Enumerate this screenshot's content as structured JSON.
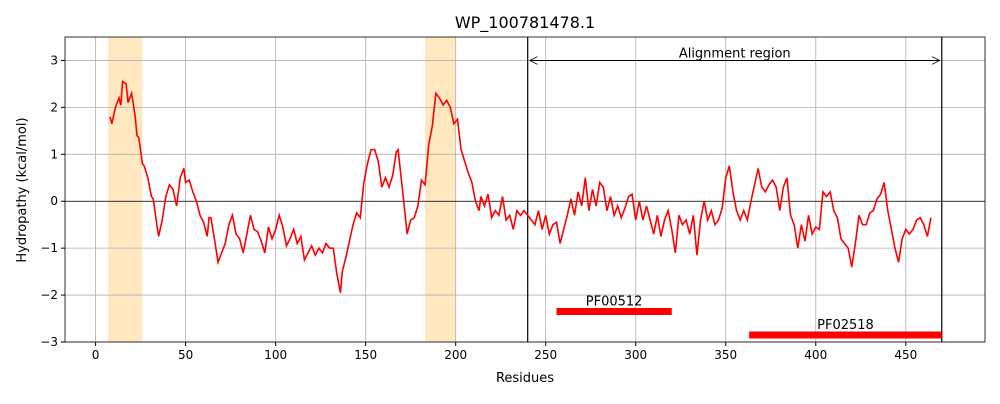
{
  "chart_data": {
    "type": "line",
    "title": "WP_100781478.1",
    "xlabel": "Residues",
    "ylabel": "Hydropathy (kcal/mol)",
    "x": [
      8,
      9,
      11,
      13,
      14,
      15,
      17,
      18,
      20,
      22,
      23,
      24,
      26,
      27,
      29,
      31,
      32,
      34,
      35,
      37,
      39,
      41,
      43,
      45,
      47,
      49,
      50,
      52,
      54,
      56,
      58,
      60,
      62,
      63,
      64,
      66,
      68,
      70,
      72,
      74,
      76,
      78,
      80,
      82,
      84,
      86,
      88,
      90,
      92,
      94,
      96,
      98,
      100,
      102,
      104,
      106,
      108,
      110,
      112,
      114,
      116,
      118,
      120,
      122,
      124,
      126,
      128,
      130,
      132,
      134,
      136,
      137,
      139,
      141,
      143,
      145,
      147,
      149,
      151,
      153,
      155,
      157,
      159,
      161,
      163,
      165,
      167,
      168,
      170,
      172,
      173,
      175,
      177,
      179,
      181,
      183,
      185,
      187,
      189,
      191,
      193,
      195,
      197,
      199,
      201,
      203,
      205,
      207,
      209,
      211,
      213,
      214,
      216,
      218,
      220,
      222,
      224,
      226,
      228,
      230,
      232,
      234,
      236,
      238,
      240,
      242,
      244,
      246,
      248,
      250,
      252,
      254,
      256,
      258,
      260,
      262,
      264,
      266,
      268,
      270,
      272,
      274,
      276,
      278,
      280,
      282,
      284,
      286,
      288,
      290,
      292,
      294,
      296,
      298,
      300,
      302,
      304,
      306,
      308,
      310,
      312,
      314,
      316,
      318,
      320,
      322,
      324,
      326,
      328,
      330,
      332,
      334,
      336,
      338,
      340,
      342,
      344,
      346,
      348,
      350,
      352,
      354,
      356,
      358,
      360,
      362,
      364,
      366,
      368,
      370,
      372,
      374,
      376,
      378,
      380,
      382,
      384,
      386,
      388,
      390,
      392,
      394,
      396,
      398,
      400,
      402,
      404,
      406,
      408,
      410,
      412,
      414,
      416,
      418,
      420,
      422,
      424,
      426,
      428,
      430,
      432,
      434,
      436,
      438,
      440,
      442,
      444,
      446,
      448,
      450,
      452,
      454,
      456,
      458,
      460,
      462,
      464
    ],
    "values": [
      1.8,
      1.65,
      2.0,
      2.2,
      2.05,
      2.55,
      2.5,
      2.1,
      2.3,
      1.8,
      1.4,
      1.35,
      0.8,
      0.75,
      0.5,
      0.1,
      0.05,
      -0.5,
      -0.75,
      -0.4,
      0.1,
      0.35,
      0.25,
      -0.1,
      0.5,
      0.7,
      0.4,
      0.45,
      0.2,
      0.0,
      -0.3,
      -0.45,
      -0.75,
      -0.35,
      -0.35,
      -0.8,
      -1.3,
      -1.1,
      -0.9,
      -0.5,
      -0.3,
      -0.7,
      -0.8,
      -1.1,
      -0.7,
      -0.3,
      -0.6,
      -0.65,
      -0.85,
      -1.1,
      -0.55,
      -0.8,
      -0.6,
      -0.3,
      -0.55,
      -0.95,
      -0.8,
      -0.6,
      -0.9,
      -0.75,
      -1.25,
      -1.1,
      -0.95,
      -1.15,
      -1.0,
      -1.1,
      -0.9,
      -1.0,
      -1.0,
      -1.55,
      -1.95,
      -1.5,
      -1.2,
      -0.85,
      -0.5,
      -0.25,
      -0.35,
      0.4,
      0.8,
      1.1,
      1.1,
      0.85,
      0.3,
      0.5,
      0.3,
      0.55,
      1.05,
      1.1,
      0.4,
      -0.3,
      -0.7,
      -0.4,
      -0.35,
      -0.1,
      0.45,
      0.35,
      1.2,
      1.6,
      2.3,
      2.2,
      2.05,
      2.15,
      2.0,
      1.65,
      1.75,
      1.1,
      0.85,
      0.6,
      0.4,
      0.0,
      -0.2,
      0.1,
      -0.1,
      0.15,
      -0.35,
      -0.2,
      -0.3,
      0.1,
      -0.4,
      -0.3,
      -0.6,
      -0.2,
      -0.3,
      -0.2,
      -0.3,
      -0.4,
      -0.5,
      -0.2,
      -0.6,
      -0.3,
      -0.7,
      -0.5,
      -0.45,
      -0.9,
      -0.6,
      -0.3,
      0.05,
      -0.3,
      0.2,
      -0.1,
      0.5,
      -0.2,
      0.25,
      -0.1,
      0.4,
      0.3,
      -0.2,
      0.1,
      -0.3,
      -0.1,
      -0.35,
      -0.15,
      0.1,
      0.15,
      -0.4,
      0.0,
      -0.4,
      -0.1,
      -0.4,
      -0.7,
      -0.3,
      -0.75,
      -0.4,
      -0.2,
      -0.6,
      -1.1,
      -0.3,
      -0.5,
      -0.4,
      -0.7,
      -0.3,
      -1.15,
      -0.4,
      0.0,
      -0.4,
      -0.2,
      -0.5,
      -0.4,
      -0.15,
      0.5,
      0.75,
      0.2,
      -0.2,
      -0.4,
      -0.2,
      -0.4,
      0.0,
      0.35,
      0.7,
      0.3,
      0.2,
      0.35,
      0.45,
      0.3,
      -0.2,
      0.3,
      0.5,
      -0.3,
      -0.5,
      -1.0,
      -0.5,
      -0.85,
      -0.3,
      -0.7,
      -0.55,
      -0.6,
      0.2,
      0.1,
      0.2,
      -0.2,
      -0.35,
      -0.8,
      -0.9,
      -1.0,
      -1.4,
      -0.9,
      -0.3,
      -0.5,
      -0.5,
      -0.25,
      -0.2,
      0.05,
      0.15,
      0.4,
      -0.2,
      -0.6,
      -1.0,
      -1.3,
      -0.8,
      -0.6,
      -0.7,
      -0.6,
      -0.4,
      -0.35,
      -0.5,
      -0.75,
      -0.35
    ],
    "color": "#ff0000",
    "xlim": [
      -17,
      494
    ],
    "ylim": [
      -3,
      3.5
    ],
    "xticks": [
      0,
      50,
      100,
      150,
      200,
      250,
      300,
      350,
      400,
      450
    ],
    "yticks": [
      {
        "value": -3,
        "label": "−3"
      },
      {
        "value": -2,
        "label": "−2"
      },
      {
        "value": -1,
        "label": "−1"
      },
      0,
      1,
      2,
      3
    ],
    "grid": true,
    "highlights": [
      [
        7,
        26
      ],
      [
        183,
        200
      ]
    ],
    "highlight_color": "#ffe7c0",
    "alignment": {
      "label": "Alignment region",
      "start": 240,
      "end": 470,
      "y": 3
    },
    "domains": [
      {
        "name": "PF00512",
        "start": 256,
        "end": 320,
        "y": -2.35
      },
      {
        "name": "PF02518",
        "start": 363,
        "end": 470,
        "y": -2.85
      }
    ]
  }
}
